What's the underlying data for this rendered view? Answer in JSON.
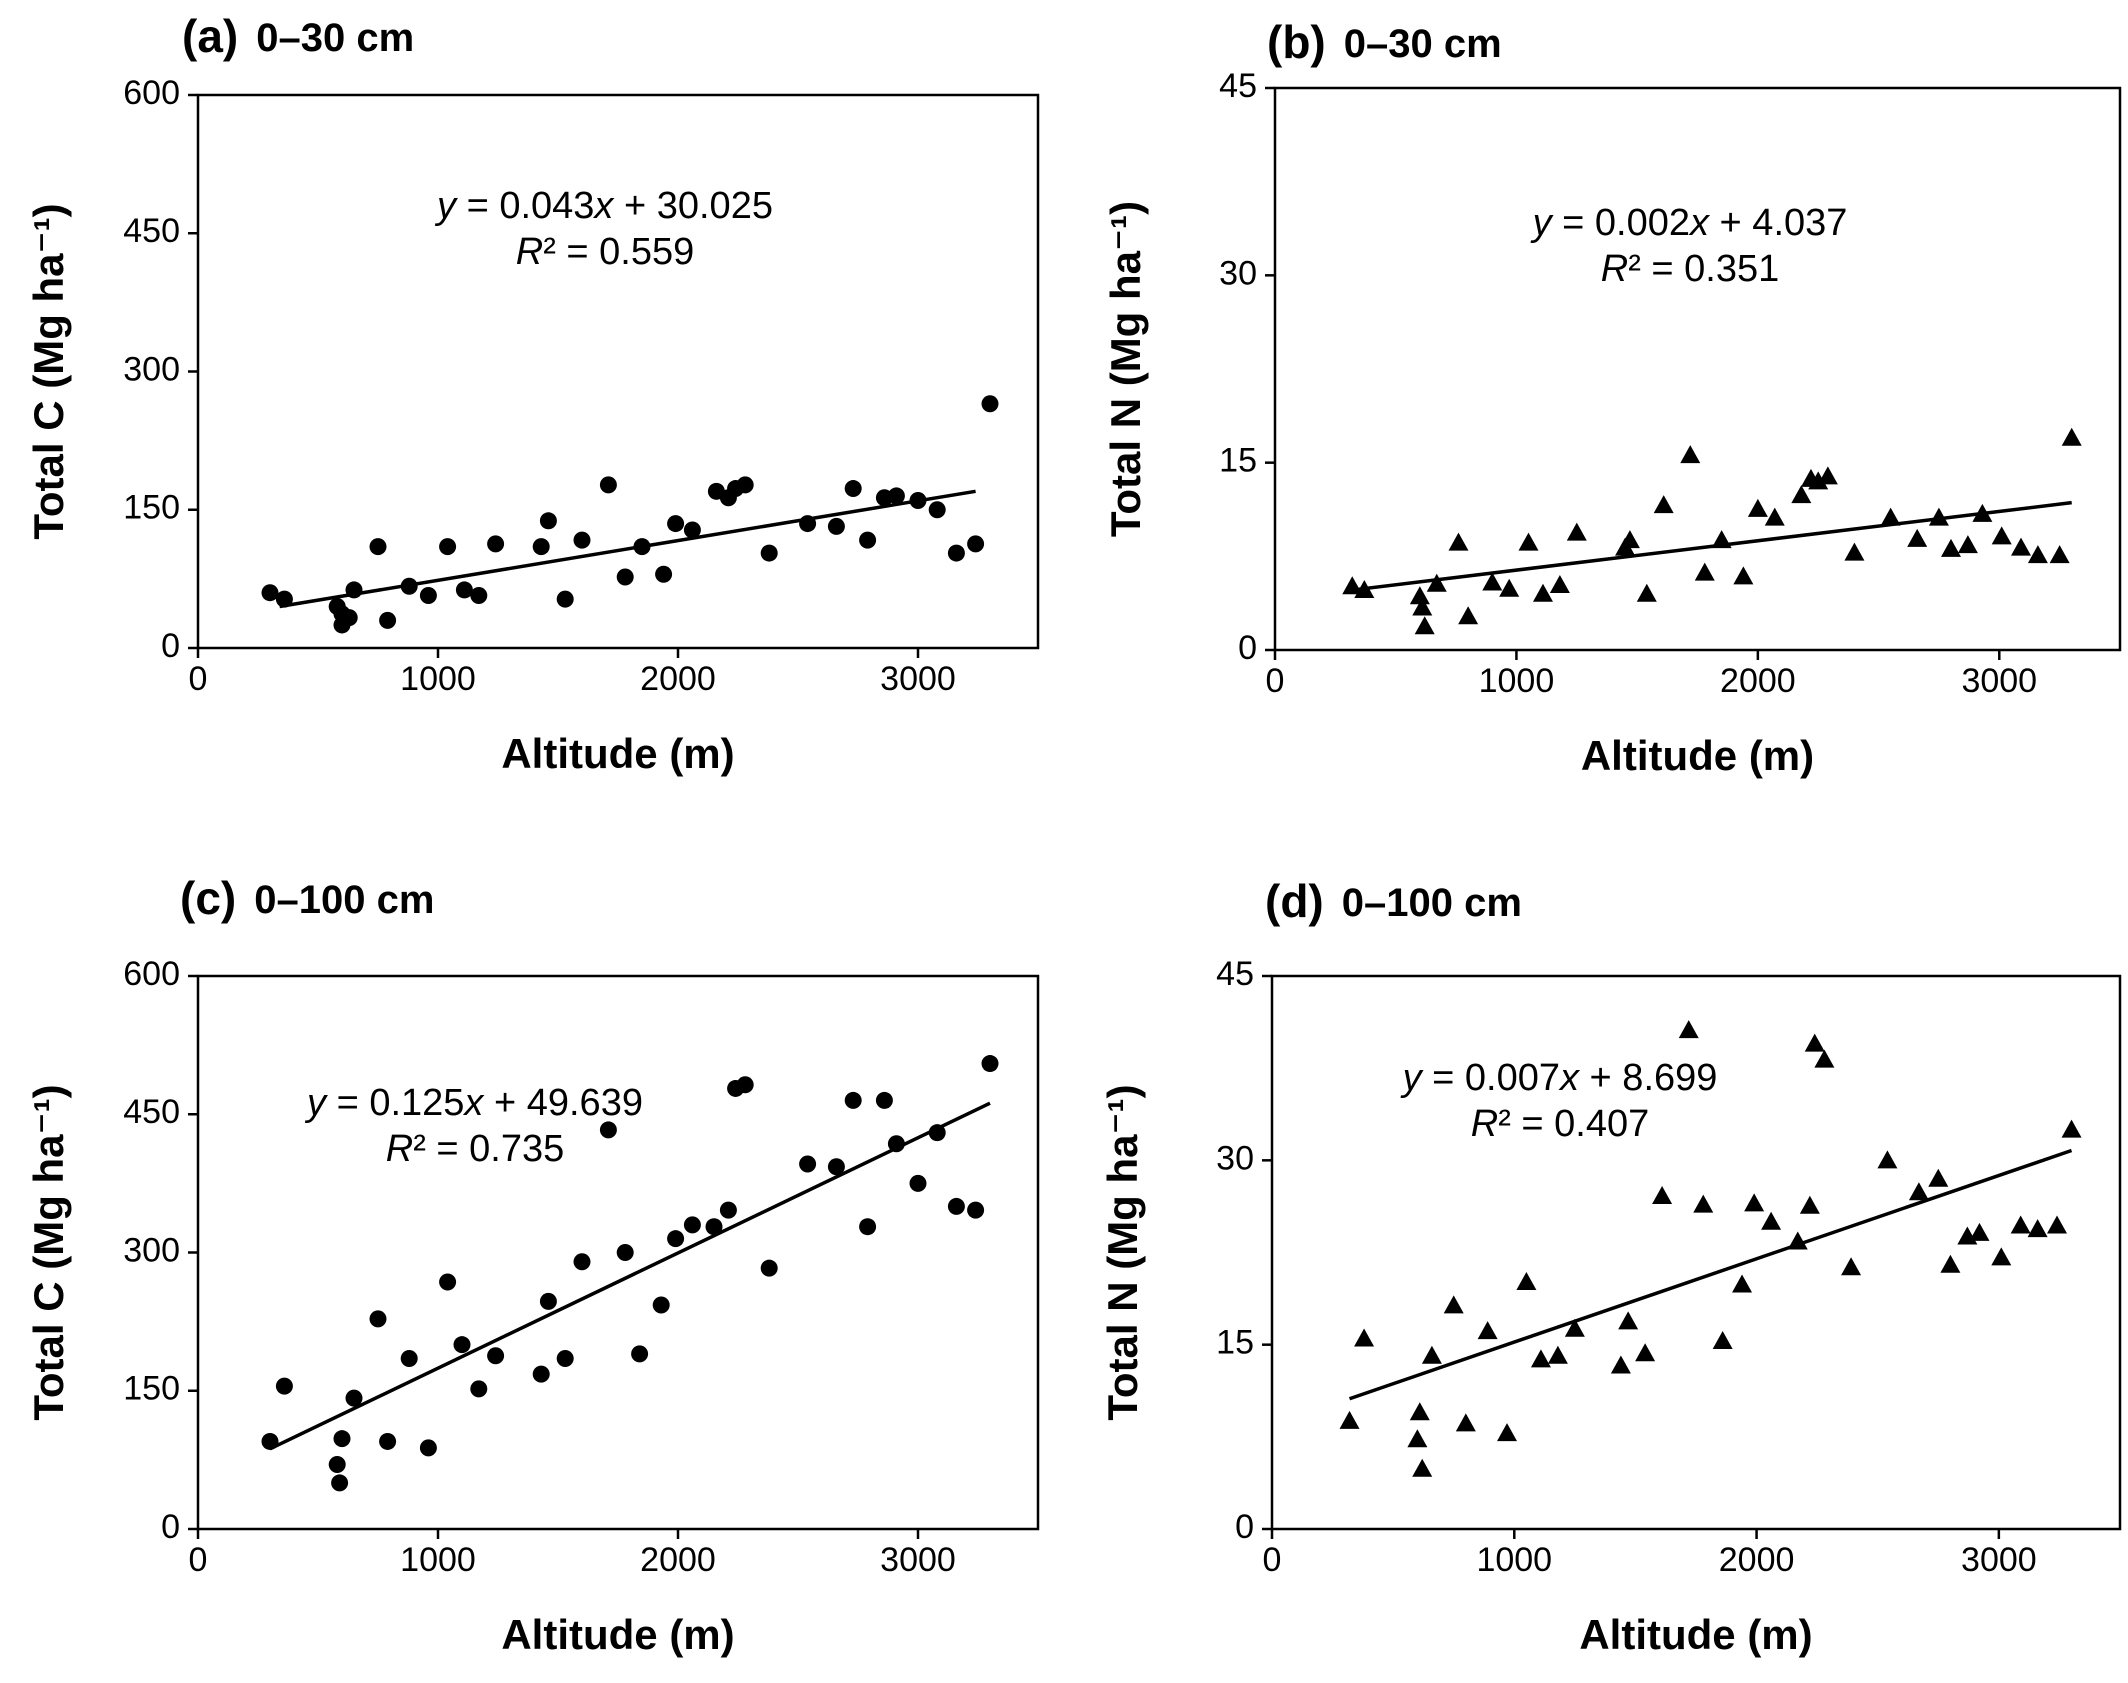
{
  "chart_data": [
    {
      "id": "a",
      "type": "scatter",
      "panel_label": "(a)",
      "depth": "0–30 cm",
      "marker": "circle",
      "xlabel": "Altitude (m)",
      "ylabel": "Total C (Mg ha⁻¹)",
      "xlim": [
        0,
        3500
      ],
      "ylim": [
        0,
        600
      ],
      "xticks": [
        0,
        1000,
        2000,
        3000
      ],
      "yticks": [
        0,
        150,
        300,
        450,
        600
      ],
      "equation": "y = 0.043x + 30.025",
      "r2": "R² = 0.559",
      "fit_line": {
        "x": [
          340,
          3240
        ],
        "y": [
          45,
          170
        ]
      },
      "x": [
        300,
        360,
        580,
        600,
        600,
        630,
        650,
        750,
        790,
        880,
        960,
        1040,
        1110,
        1170,
        1240,
        1430,
        1460,
        1530,
        1600,
        1710,
        1780,
        1850,
        1940,
        1990,
        2060,
        2160,
        2210,
        2240,
        2280,
        2380,
        2540,
        2660,
        2730,
        2790,
        2860,
        2910,
        3000,
        3080,
        3160,
        3240,
        3300
      ],
      "y": [
        60,
        53,
        45,
        37,
        25,
        33,
        63,
        110,
        30,
        67,
        57,
        110,
        63,
        57,
        113,
        110,
        138,
        53,
        117,
        177,
        77,
        110,
        80,
        135,
        128,
        170,
        163,
        173,
        177,
        103,
        135,
        132,
        173,
        117,
        163,
        165,
        160,
        150,
        103,
        113,
        265
      ]
    },
    {
      "id": "b",
      "type": "scatter",
      "panel_label": "(b)",
      "depth": "0–30 cm",
      "marker": "triangle",
      "xlabel": "Altitude (m)",
      "ylabel": "Total N (Mg ha⁻¹)",
      "xlim": [
        0,
        3500
      ],
      "ylim": [
        0,
        45
      ],
      "xticks": [
        0,
        1000,
        2000,
        3000
      ],
      "yticks": [
        0,
        15,
        30,
        45
      ],
      "equation": "y = 0.002x + 4.037",
      "r2": "R² = 0.351",
      "fit_line": {
        "x": [
          320,
          3300
        ],
        "y": [
          4.8,
          11.8
        ]
      },
      "x": [
        320,
        370,
        600,
        610,
        620,
        670,
        760,
        800,
        900,
        970,
        1050,
        1110,
        1180,
        1250,
        1450,
        1470,
        1540,
        1610,
        1720,
        1780,
        1850,
        1940,
        2000,
        2070,
        2180,
        2220,
        2250,
        2290,
        2400,
        2550,
        2660,
        2750,
        2800,
        2870,
        2930,
        3010,
        3090,
        3160,
        3250,
        3300
      ],
      "y": [
        5.1,
        4.8,
        4.3,
        3.4,
        1.9,
        5.3,
        8.6,
        2.7,
        5.4,
        4.9,
        8.6,
        4.5,
        5.2,
        9.4,
        8.2,
        8.8,
        4.5,
        11.6,
        15.6,
        6.2,
        8.8,
        5.9,
        11.3,
        10.6,
        12.4,
        13.7,
        13.5,
        13.9,
        7.8,
        10.6,
        8.9,
        10.6,
        8.1,
        8.4,
        10.9,
        9.1,
        8.2,
        7.6,
        7.6,
        17.0
      ]
    },
    {
      "id": "c",
      "type": "scatter",
      "panel_label": "(c)",
      "depth": "0–100 cm",
      "marker": "circle",
      "xlabel": "Altitude (m)",
      "ylabel": "Total C (Mg ha⁻¹)",
      "xlim": [
        0,
        3500
      ],
      "ylim": [
        0,
        600
      ],
      "xticks": [
        0,
        1000,
        2000,
        3000
      ],
      "yticks": [
        0,
        150,
        300,
        450,
        600
      ],
      "equation": "y = 0.125x + 49.639",
      "r2": "R² = 0.735",
      "fit_line": {
        "x": [
          300,
          3300
        ],
        "y": [
          87,
          462
        ]
      },
      "x": [
        300,
        360,
        580,
        590,
        600,
        650,
        750,
        790,
        880,
        960,
        1040,
        1100,
        1170,
        1240,
        1430,
        1460,
        1530,
        1600,
        1710,
        1780,
        1840,
        1930,
        1990,
        2060,
        2150,
        2210,
        2240,
        2280,
        2380,
        2540,
        2660,
        2730,
        2790,
        2860,
        2910,
        3000,
        3080,
        3160,
        3240,
        3300
      ],
      "y": [
        95,
        155,
        70,
        50,
        98,
        142,
        228,
        95,
        185,
        88,
        268,
        200,
        152,
        188,
        168,
        247,
        185,
        290,
        433,
        300,
        190,
        243,
        315,
        330,
        328,
        346,
        478,
        482,
        283,
        396,
        393,
        465,
        328,
        465,
        418,
        375,
        430,
        350,
        346,
        505
      ]
    },
    {
      "id": "d",
      "type": "scatter",
      "panel_label": "(d)",
      "depth": "0–100 cm",
      "marker": "triangle",
      "xlabel": "Altitude (m)",
      "ylabel": "Total N (Mg ha⁻¹)",
      "xlim": [
        0,
        3500
      ],
      "ylim": [
        0,
        45
      ],
      "xticks": [
        0,
        1000,
        2000,
        3000
      ],
      "yticks": [
        0,
        15,
        30,
        45
      ],
      "equation": "y = 0.007x + 8.699",
      "r2": "R² = 0.407",
      "fit_line": {
        "x": [
          320,
          3300
        ],
        "y": [
          10.6,
          30.8
        ]
      },
      "x": [
        320,
        380,
        600,
        610,
        620,
        660,
        750,
        800,
        890,
        970,
        1050,
        1110,
        1180,
        1250,
        1440,
        1470,
        1540,
        1610,
        1720,
        1780,
        1860,
        1940,
        1990,
        2060,
        2170,
        2220,
        2240,
        2280,
        2390,
        2540,
        2670,
        2750,
        2800,
        2870,
        2920,
        3010,
        3090,
        3160,
        3240,
        3300
      ],
      "y": [
        8.8,
        15.5,
        7.3,
        9.5,
        4.9,
        14.1,
        18.2,
        8.6,
        16.1,
        7.8,
        20.1,
        13.8,
        14.1,
        16.3,
        13.3,
        16.9,
        14.3,
        27.1,
        40.6,
        26.4,
        15.3,
        19.9,
        26.5,
        25.0,
        23.4,
        26.3,
        39.5,
        38.2,
        21.3,
        30.0,
        27.4,
        28.5,
        21.5,
        23.8,
        24.1,
        22.1,
        24.7,
        24.4,
        24.7,
        32.5
      ]
    }
  ]
}
